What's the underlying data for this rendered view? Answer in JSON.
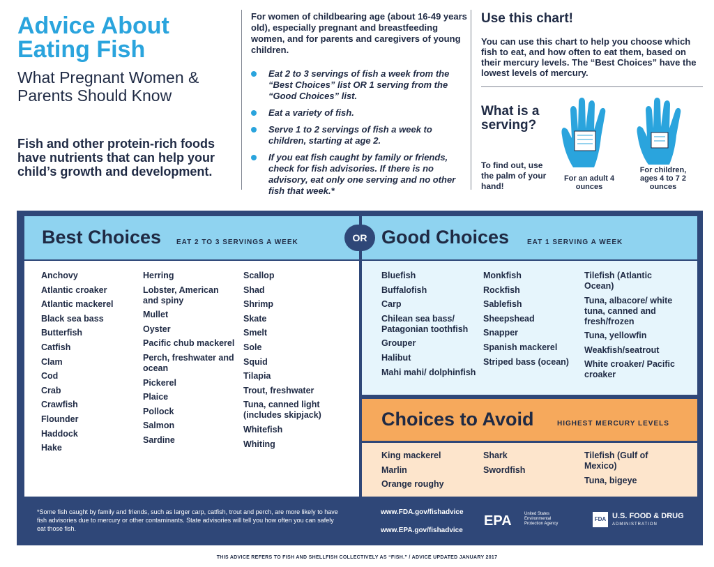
{
  "header": {
    "title": "Advice About Eating Fish",
    "subtitle": "What Pregnant Women & Parents Should Know",
    "intro": "Fish and other protein-rich foods have nutrients that can help your child’s growth and development."
  },
  "middle": {
    "intro": "For women of childbearing age (about 16-49 years old), especially pregnant and breastfeeding women, and for parents and caregivers of young children.",
    "bullets": [
      "Eat 2 to 3 servings of fish a week from the “Best Choices” list OR 1 serving from the “Good Choices” list.",
      "Eat a variety of fish.",
      "Serve 1 to 2 servings of fish a week to children, starting at age 2.",
      "If you eat fish caught by family or friends, check for fish advisories. If there is no advisory, eat only one serving and no other fish that week.*"
    ]
  },
  "right": {
    "use_title": "Use this chart!",
    "use_text": "You can use this chart to help you choose which fish to eat, and how often to eat them, based on their mercury levels. The “Best Choices” have the lowest levels of mercury.",
    "serving_title": "What is a serving?",
    "serving_text": "To find out, use the palm of your hand!",
    "adult_caption": "For an adult 4 ounces",
    "child_caption": "For children, ages 4 to 7 2 ounces"
  },
  "best": {
    "title": "Best Choices",
    "subtitle": "EAT 2 TO 3 SERVINGS A WEEK",
    "col1": [
      "Anchovy",
      "Atlantic croaker",
      "Atlantic mackerel",
      "Black sea bass",
      "Butterfish",
      "Catfish",
      "Clam",
      "Cod",
      "Crab",
      "Crawfish",
      "Flounder",
      "Haddock",
      "Hake"
    ],
    "col2": [
      "Herring",
      "Lobster, American and spiny",
      "Mullet",
      "Oyster",
      "Pacific chub mackerel",
      "Perch, freshwater and ocean",
      "Pickerel",
      "Plaice",
      "Pollock",
      "Salmon",
      "Sardine"
    ],
    "col3": [
      "Scallop",
      "Shad",
      "Shrimp",
      "Skate",
      "Smelt",
      "Sole",
      "Squid",
      "Tilapia",
      "Trout, freshwater",
      "Tuna, canned light (includes skipjack)",
      "Whitefish",
      "Whiting"
    ]
  },
  "or_label": "OR",
  "good": {
    "title": "Good Choices",
    "subtitle": "EAT 1 SERVING A WEEK",
    "col1": [
      "Bluefish",
      "Buffalofish",
      "Carp",
      "Chilean sea bass/ Patagonian toothfish",
      "Grouper",
      "Halibut",
      "Mahi mahi/ dolphinfish"
    ],
    "col2": [
      "Monkfish",
      "Rockfish",
      "Sablefish",
      "Sheepshead",
      "Snapper",
      "Spanish mackerel",
      "Striped bass (ocean)"
    ],
    "col3": [
      "Tilefish (Atlantic Ocean)",
      "Tuna, albacore/ white tuna, canned and fresh/frozen",
      "Tuna, yellowfin",
      "Weakfish/seatrout",
      "White croaker/ Pacific croaker"
    ]
  },
  "avoid": {
    "title": "Choices to Avoid",
    "subtitle": "HIGHEST MERCURY LEVELS",
    "col1": [
      "King mackerel",
      "Marlin",
      "Orange roughy"
    ],
    "col2": [
      "Shark",
      "Swordfish"
    ],
    "col3": [
      "Tilefish (Gulf of Mexico)",
      "Tuna, bigeye"
    ]
  },
  "footer": {
    "footnote": "*Some fish caught by family and friends, such as larger carp, catfish, trout and perch, are more likely to have fish advisories due to mercury or other contaminants. State advisories will tell you how often you can safely eat those fish.",
    "url_fda": "www.FDA.gov/fishadvice",
    "url_epa": "www.EPA.gov/fishadvice",
    "epa_mark": "EPA",
    "epa_text": "United States Environmental Protection Agency",
    "fda_box": "FDA",
    "fda_name": "U.S. FOOD & DRUG",
    "fda_admin": "ADMINISTRATION",
    "bottom_note": "THIS ADVICE REFERS TO FISH AND SHELLFISH COLLECTIVELY AS “FISH.” / ADVICE UPDATED JANUARY 2017"
  },
  "colors": {
    "accent_blue": "#2aa4dd",
    "navy": "#2f4778",
    "light_blue": "#8fd3f0",
    "orange": "#f6a95c",
    "peach": "#fde5cc"
  }
}
